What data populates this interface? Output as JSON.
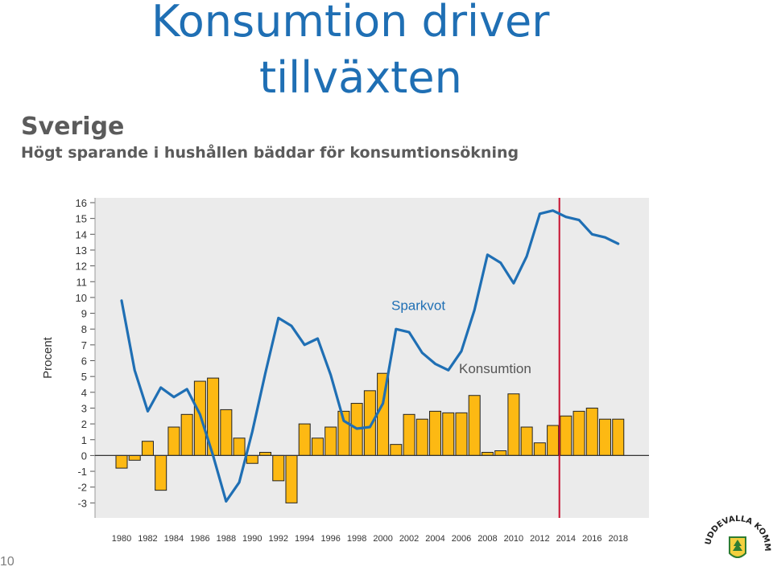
{
  "slide": {
    "title_line1": "Konsumtion driver",
    "title_line2": "tillväxten",
    "page_number": "10"
  },
  "chart_heading": {
    "title": "Sverige",
    "subtitle": "Högt sparande i hushållen bäddar för konsumtionsökning"
  },
  "logo": {
    "text": "UDDEVALLA KOMMUN",
    "colors": {
      "green": "#2e7d32",
      "ink": "#222222"
    }
  },
  "colors": {
    "title": "#1F6FB4",
    "bar_fill": "#FDB913",
    "line": "#1F6FB4",
    "marker": "#C8102E",
    "plot_bg": "#EBEBEB",
    "axis_text": "#333333",
    "line_label": "#1F6FB4",
    "bar_label": "#555555"
  },
  "chart_data": {
    "type": "bar",
    "ylabel": "Procent",
    "xlabel": "",
    "ylim": [
      -3,
      16
    ],
    "y_ticks": [
      16,
      15,
      14,
      13,
      12,
      11,
      10,
      9,
      8,
      7,
      6,
      5,
      4,
      3,
      2,
      1,
      0,
      -1,
      -2,
      -3
    ],
    "x_tick_labels": [
      "1980",
      "1982",
      "1984",
      "1986",
      "1988",
      "1990",
      "1992",
      "1994",
      "1996",
      "1998",
      "2000",
      "2002",
      "2004",
      "2006",
      "2008",
      "2010",
      "2012",
      "2014",
      "2016",
      "2018"
    ],
    "categories": [
      1980,
      1981,
      1982,
      1983,
      1984,
      1985,
      1986,
      1987,
      1988,
      1989,
      1990,
      1991,
      1992,
      1993,
      1994,
      1995,
      1996,
      1997,
      1998,
      1999,
      2000,
      2001,
      2002,
      2003,
      2004,
      2005,
      2006,
      2007,
      2008,
      2009,
      2010,
      2011,
      2012,
      2013,
      2014,
      2015,
      2016,
      2017,
      2018
    ],
    "marker_year": 2013.5,
    "series": [
      {
        "name": "Konsumtion",
        "kind": "bar",
        "values": [
          -0.8,
          -0.3,
          0.9,
          -2.2,
          1.8,
          2.6,
          4.7,
          4.9,
          2.9,
          1.1,
          -0.5,
          0.2,
          -1.6,
          -3.0,
          2.0,
          1.1,
          1.8,
          2.8,
          3.3,
          4.1,
          5.2,
          0.7,
          2.6,
          2.3,
          2.8,
          2.7,
          2.7,
          3.8,
          0.2,
          0.3,
          3.9,
          1.8,
          0.8,
          1.9,
          2.5,
          2.8,
          3.0,
          2.3,
          2.3
        ]
      },
      {
        "name": "Sparkvot",
        "kind": "line",
        "values": [
          9.8,
          5.4,
          2.8,
          4.3,
          3.7,
          4.2,
          2.6,
          0.0,
          -2.9,
          -1.7,
          1.5,
          5.2,
          8.7,
          8.2,
          7.0,
          7.4,
          5.1,
          2.2,
          1.7,
          1.8,
          3.3,
          8.0,
          7.8,
          6.5,
          5.8,
          5.4,
          6.6,
          9.2,
          12.7,
          12.2,
          10.9,
          12.6,
          15.3,
          15.5,
          15.1,
          14.9,
          14.0,
          13.8,
          13.4
        ]
      }
    ]
  }
}
